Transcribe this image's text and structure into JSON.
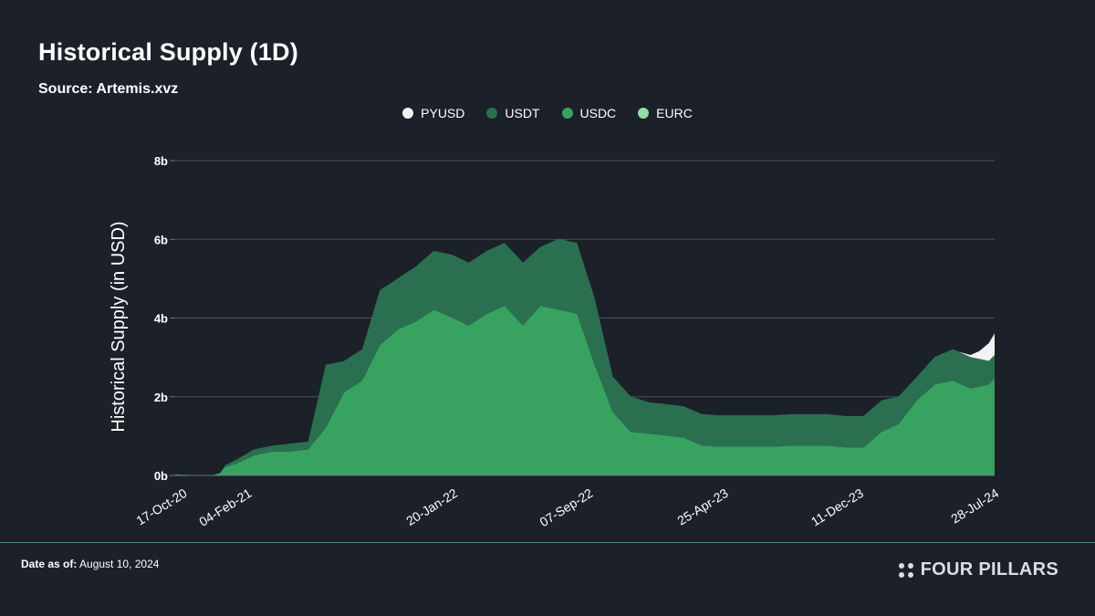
{
  "header": {
    "title": "Historical Supply (1D)",
    "source": "Source: Artemis.xvz"
  },
  "footer": {
    "date_label": "Date as of:",
    "date_value": "August 10, 2024",
    "brand": "FOUR PILLARS",
    "line_color": "#4c8f6b"
  },
  "chart_data": {
    "type": "area",
    "stacked": true,
    "title": "Historical Supply (1D)",
    "ylabel": "Historical Supply (in USD)",
    "xlabel": "",
    "ylim": [
      0,
      8
    ],
    "y_unit": "b",
    "y_ticks": [
      "0b",
      "2b",
      "4b",
      "6b",
      "8b"
    ],
    "x_tick_labels": [
      "17-Oct-20",
      "04-Feb-21",
      "20-Jan-22",
      "07-Sep-22",
      "25-Apr-23",
      "11-Dec-23",
      "28-Jul-24"
    ],
    "x_tick_values": [
      "2020-10-17",
      "2021-02-04",
      "2022-01-20",
      "2022-09-07",
      "2023-04-25",
      "2023-12-11",
      "2024-07-28"
    ],
    "grid": true,
    "legend_position": "top-center",
    "series": [
      {
        "name": "EURC",
        "color": "#8fe0a8",
        "x": [
          "2020-10-17",
          "2024-08-10"
        ],
        "values": [
          0.01,
          0.01
        ]
      },
      {
        "name": "USDC",
        "color": "#38a260",
        "x": [
          "2020-10-17",
          "2020-11-15",
          "2020-12-20",
          "2021-01-01",
          "2021-01-10",
          "2021-01-30",
          "2021-02-28",
          "2021-03-31",
          "2021-04-30",
          "2021-05-31",
          "2021-06-30",
          "2021-07-31",
          "2021-08-31",
          "2021-09-30",
          "2021-10-31",
          "2021-11-30",
          "2021-12-31",
          "2022-01-31",
          "2022-02-28",
          "2022-03-31",
          "2022-04-30",
          "2022-05-31",
          "2022-06-30",
          "2022-07-31",
          "2022-08-31",
          "2022-09-30",
          "2022-10-31",
          "2022-11-30",
          "2022-12-31",
          "2023-01-31",
          "2023-02-28",
          "2023-03-31",
          "2023-04-30",
          "2023-05-31",
          "2023-06-30",
          "2023-07-31",
          "2023-08-31",
          "2023-09-30",
          "2023-10-31",
          "2023-11-30",
          "2023-12-31",
          "2024-01-31",
          "2024-02-29",
          "2024-03-31",
          "2024-04-30",
          "2024-05-31",
          "2024-06-30",
          "2024-07-31",
          "2024-08-10"
        ],
        "values": [
          0.02,
          0.0,
          0.0,
          0.05,
          0.2,
          0.3,
          0.5,
          0.6,
          0.6,
          0.65,
          1.2,
          2.1,
          2.4,
          3.3,
          3.7,
          3.9,
          4.2,
          4.0,
          3.8,
          4.1,
          4.3,
          3.8,
          4.3,
          4.2,
          4.1,
          2.8,
          1.6,
          1.1,
          1.05,
          1.0,
          0.95,
          0.75,
          0.72,
          0.72,
          0.72,
          0.72,
          0.75,
          0.75,
          0.75,
          0.7,
          0.7,
          1.1,
          1.3,
          1.9,
          2.3,
          2.4,
          2.2,
          2.3,
          2.45
        ]
      },
      {
        "name": "USDT",
        "color": "#2a7050",
        "x": [
          "2020-10-17",
          "2020-11-15",
          "2020-12-20",
          "2021-01-01",
          "2021-01-10",
          "2021-01-30",
          "2021-02-28",
          "2021-03-31",
          "2021-04-30",
          "2021-05-31",
          "2021-06-30",
          "2021-07-31",
          "2021-08-31",
          "2021-09-30",
          "2021-10-31",
          "2021-11-30",
          "2021-12-31",
          "2022-01-31",
          "2022-02-28",
          "2022-03-31",
          "2022-04-30",
          "2022-05-31",
          "2022-06-30",
          "2022-07-31",
          "2022-08-31",
          "2022-09-30",
          "2022-10-31",
          "2022-11-30",
          "2022-12-31",
          "2023-01-31",
          "2023-02-28",
          "2023-03-31",
          "2023-04-30",
          "2023-05-31",
          "2023-06-30",
          "2023-07-31",
          "2023-08-31",
          "2023-09-30",
          "2023-10-31",
          "2023-11-30",
          "2023-12-31",
          "2024-01-31",
          "2024-02-29",
          "2024-03-31",
          "2024-04-30",
          "2024-05-31",
          "2024-06-30",
          "2024-07-31",
          "2024-08-10"
        ],
        "values": [
          0.0,
          0.0,
          0.0,
          0.0,
          0.05,
          0.1,
          0.15,
          0.15,
          0.2,
          0.2,
          1.6,
          0.8,
          0.8,
          1.4,
          1.3,
          1.4,
          1.5,
          1.6,
          1.6,
          1.6,
          1.6,
          1.6,
          1.5,
          1.8,
          1.8,
          1.7,
          0.9,
          0.9,
          0.8,
          0.8,
          0.8,
          0.8,
          0.8,
          0.8,
          0.8,
          0.8,
          0.8,
          0.8,
          0.8,
          0.8,
          0.8,
          0.8,
          0.7,
          0.6,
          0.7,
          0.8,
          0.8,
          0.6,
          0.6
        ]
      },
      {
        "name": "PYUSD",
        "color": "#f2f2f2",
        "x": [
          "2020-10-17",
          "2024-06-10",
          "2024-06-30",
          "2024-07-15",
          "2024-07-31",
          "2024-08-10"
        ],
        "values": [
          0.0,
          0.0,
          0.05,
          0.2,
          0.45,
          0.55
        ]
      }
    ]
  }
}
